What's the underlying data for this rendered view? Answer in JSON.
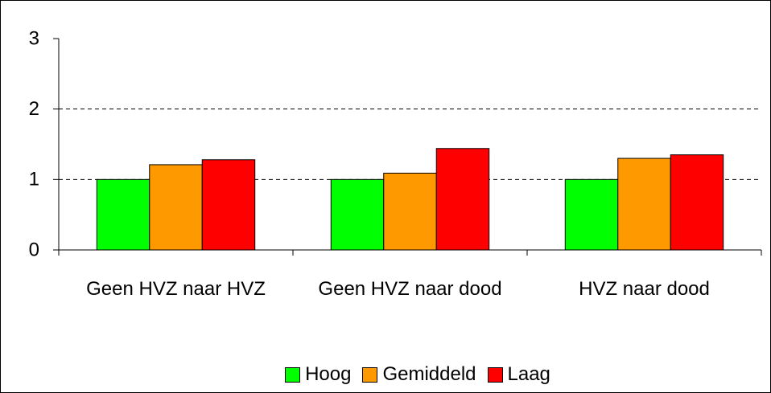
{
  "chart_data": {
    "type": "bar",
    "categories": [
      "Geen HVZ naar HVZ",
      "Geen HVZ naar dood",
      "HVZ naar dood"
    ],
    "series": [
      {
        "name": "Hoog",
        "color": "#00ff00",
        "values": [
          1,
          1,
          1
        ]
      },
      {
        "name": "Gemiddeld",
        "color": "#ff9900",
        "values": [
          1.21,
          1.09,
          1.3
        ]
      },
      {
        "name": "Laag",
        "color": "#ff0000",
        "values": [
          1.28,
          1.44,
          1.35
        ]
      }
    ],
    "ylim": [
      0,
      3
    ],
    "yticks": [
      0,
      1,
      2,
      3
    ],
    "grid": true,
    "legend": "bottom"
  }
}
